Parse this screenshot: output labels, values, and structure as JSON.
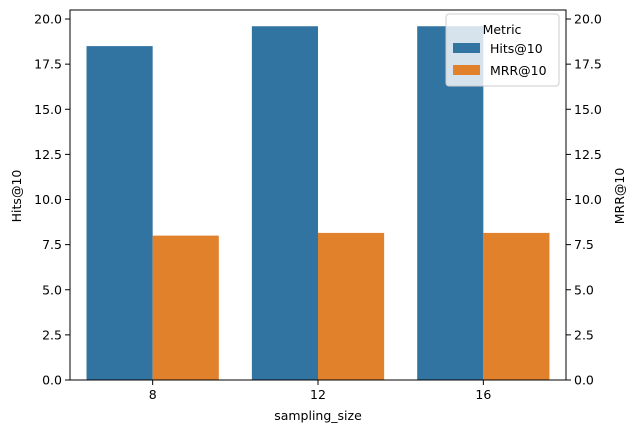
{
  "chart_data": {
    "type": "bar",
    "xlabel": "sampling_size",
    "ylabel": "Hits@10",
    "y2label": "MRR@10",
    "categories": [
      "8",
      "12",
      "16"
    ],
    "series": [
      {
        "name": "Hits@10",
        "values": [
          18.5,
          19.6,
          19.6
        ],
        "color": "#3274a1"
      },
      {
        "name": "MRR@10",
        "values": [
          8.0,
          8.15,
          8.15
        ],
        "color": "#e1812c"
      }
    ],
    "ylim": [
      0,
      20.5
    ],
    "y2lim": [
      0,
      20.5
    ],
    "yticks": [
      "0.0",
      "2.5",
      "5.0",
      "7.5",
      "10.0",
      "12.5",
      "15.0",
      "17.5",
      "20.0"
    ],
    "grid": false,
    "legend": {
      "title": "Metric",
      "placement": "top-right"
    }
  }
}
